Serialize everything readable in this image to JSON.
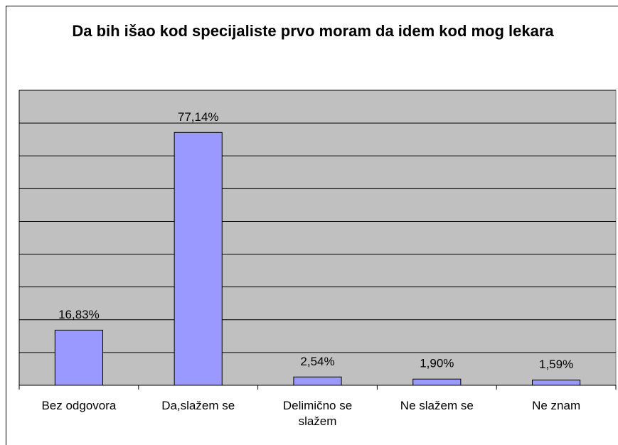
{
  "chart_data": {
    "type": "bar",
    "title": "Da bih išao kod specijaliste prvo moram da idem kod mog lekara",
    "categories": [
      "Bez odgovora",
      "Da,slažem se",
      "Delimično se slažem",
      "Ne slažem se",
      "Ne znam"
    ],
    "values": [
      16.83,
      77.14,
      2.54,
      1.9,
      1.59
    ],
    "value_labels": [
      "16,83%",
      "77,14%",
      "2,54%",
      "1,90%",
      "1,59%"
    ],
    "color": "#9999ff",
    "ylim": [
      0,
      90
    ],
    "yticks": [
      0,
      10,
      20,
      30,
      40,
      50,
      60,
      70,
      80,
      90
    ],
    "grid": true
  }
}
